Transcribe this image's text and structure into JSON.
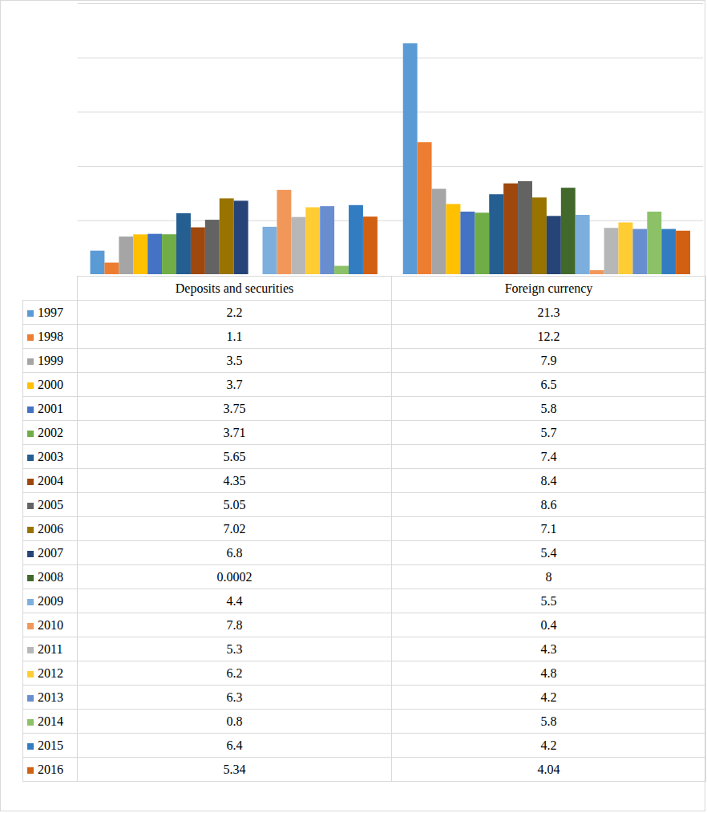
{
  "chart_data": {
    "type": "bar",
    "categories": [
      "Deposits and securities",
      "Foreign currency"
    ],
    "series": [
      {
        "name": "1997",
        "color": "#5B9BD5",
        "values": [
          2.2,
          21.3
        ]
      },
      {
        "name": "1998",
        "color": "#ED7D31",
        "values": [
          1.1,
          12.2
        ]
      },
      {
        "name": "1999",
        "color": "#A5A5A5",
        "values": [
          3.5,
          7.9
        ]
      },
      {
        "name": "2000",
        "color": "#FFC000",
        "values": [
          3.7,
          6.5
        ]
      },
      {
        "name": "2001",
        "color": "#4472C4",
        "values": [
          3.75,
          5.8
        ]
      },
      {
        "name": "2002",
        "color": "#70AD47",
        "values": [
          3.71,
          5.7
        ]
      },
      {
        "name": "2003",
        "color": "#255E91",
        "values": [
          5.65,
          7.4
        ]
      },
      {
        "name": "2004",
        "color": "#9E480E",
        "values": [
          4.35,
          8.4
        ]
      },
      {
        "name": "2005",
        "color": "#636363",
        "values": [
          5.05,
          8.6
        ]
      },
      {
        "name": "2006",
        "color": "#997300",
        "values": [
          7.02,
          7.1
        ]
      },
      {
        "name": "2007",
        "color": "#264478",
        "values": [
          6.8,
          5.4
        ]
      },
      {
        "name": "2008",
        "color": "#43682B",
        "values": [
          0.0002,
          8
        ]
      },
      {
        "name": "2009",
        "color": "#7CAFDD",
        "values": [
          4.4,
          5.5
        ]
      },
      {
        "name": "2010",
        "color": "#F1975A",
        "values": [
          7.8,
          0.4
        ]
      },
      {
        "name": "2011",
        "color": "#B7B7B7",
        "values": [
          5.3,
          4.3
        ]
      },
      {
        "name": "2012",
        "color": "#FFCD33",
        "values": [
          6.2,
          4.8
        ]
      },
      {
        "name": "2013",
        "color": "#698ED0",
        "values": [
          6.3,
          4.2
        ]
      },
      {
        "name": "2014",
        "color": "#8CC168",
        "values": [
          0.8,
          5.8
        ]
      },
      {
        "name": "2015",
        "color": "#327DC2",
        "values": [
          6.4,
          4.2
        ]
      },
      {
        "name": "2016",
        "color": "#D26012",
        "values": [
          5.34,
          4.04
        ]
      }
    ],
    "ylim": [
      0,
      25
    ],
    "yticks": [
      0,
      5,
      10,
      15,
      20,
      25
    ],
    "grid": true,
    "tick_labels": false
  }
}
